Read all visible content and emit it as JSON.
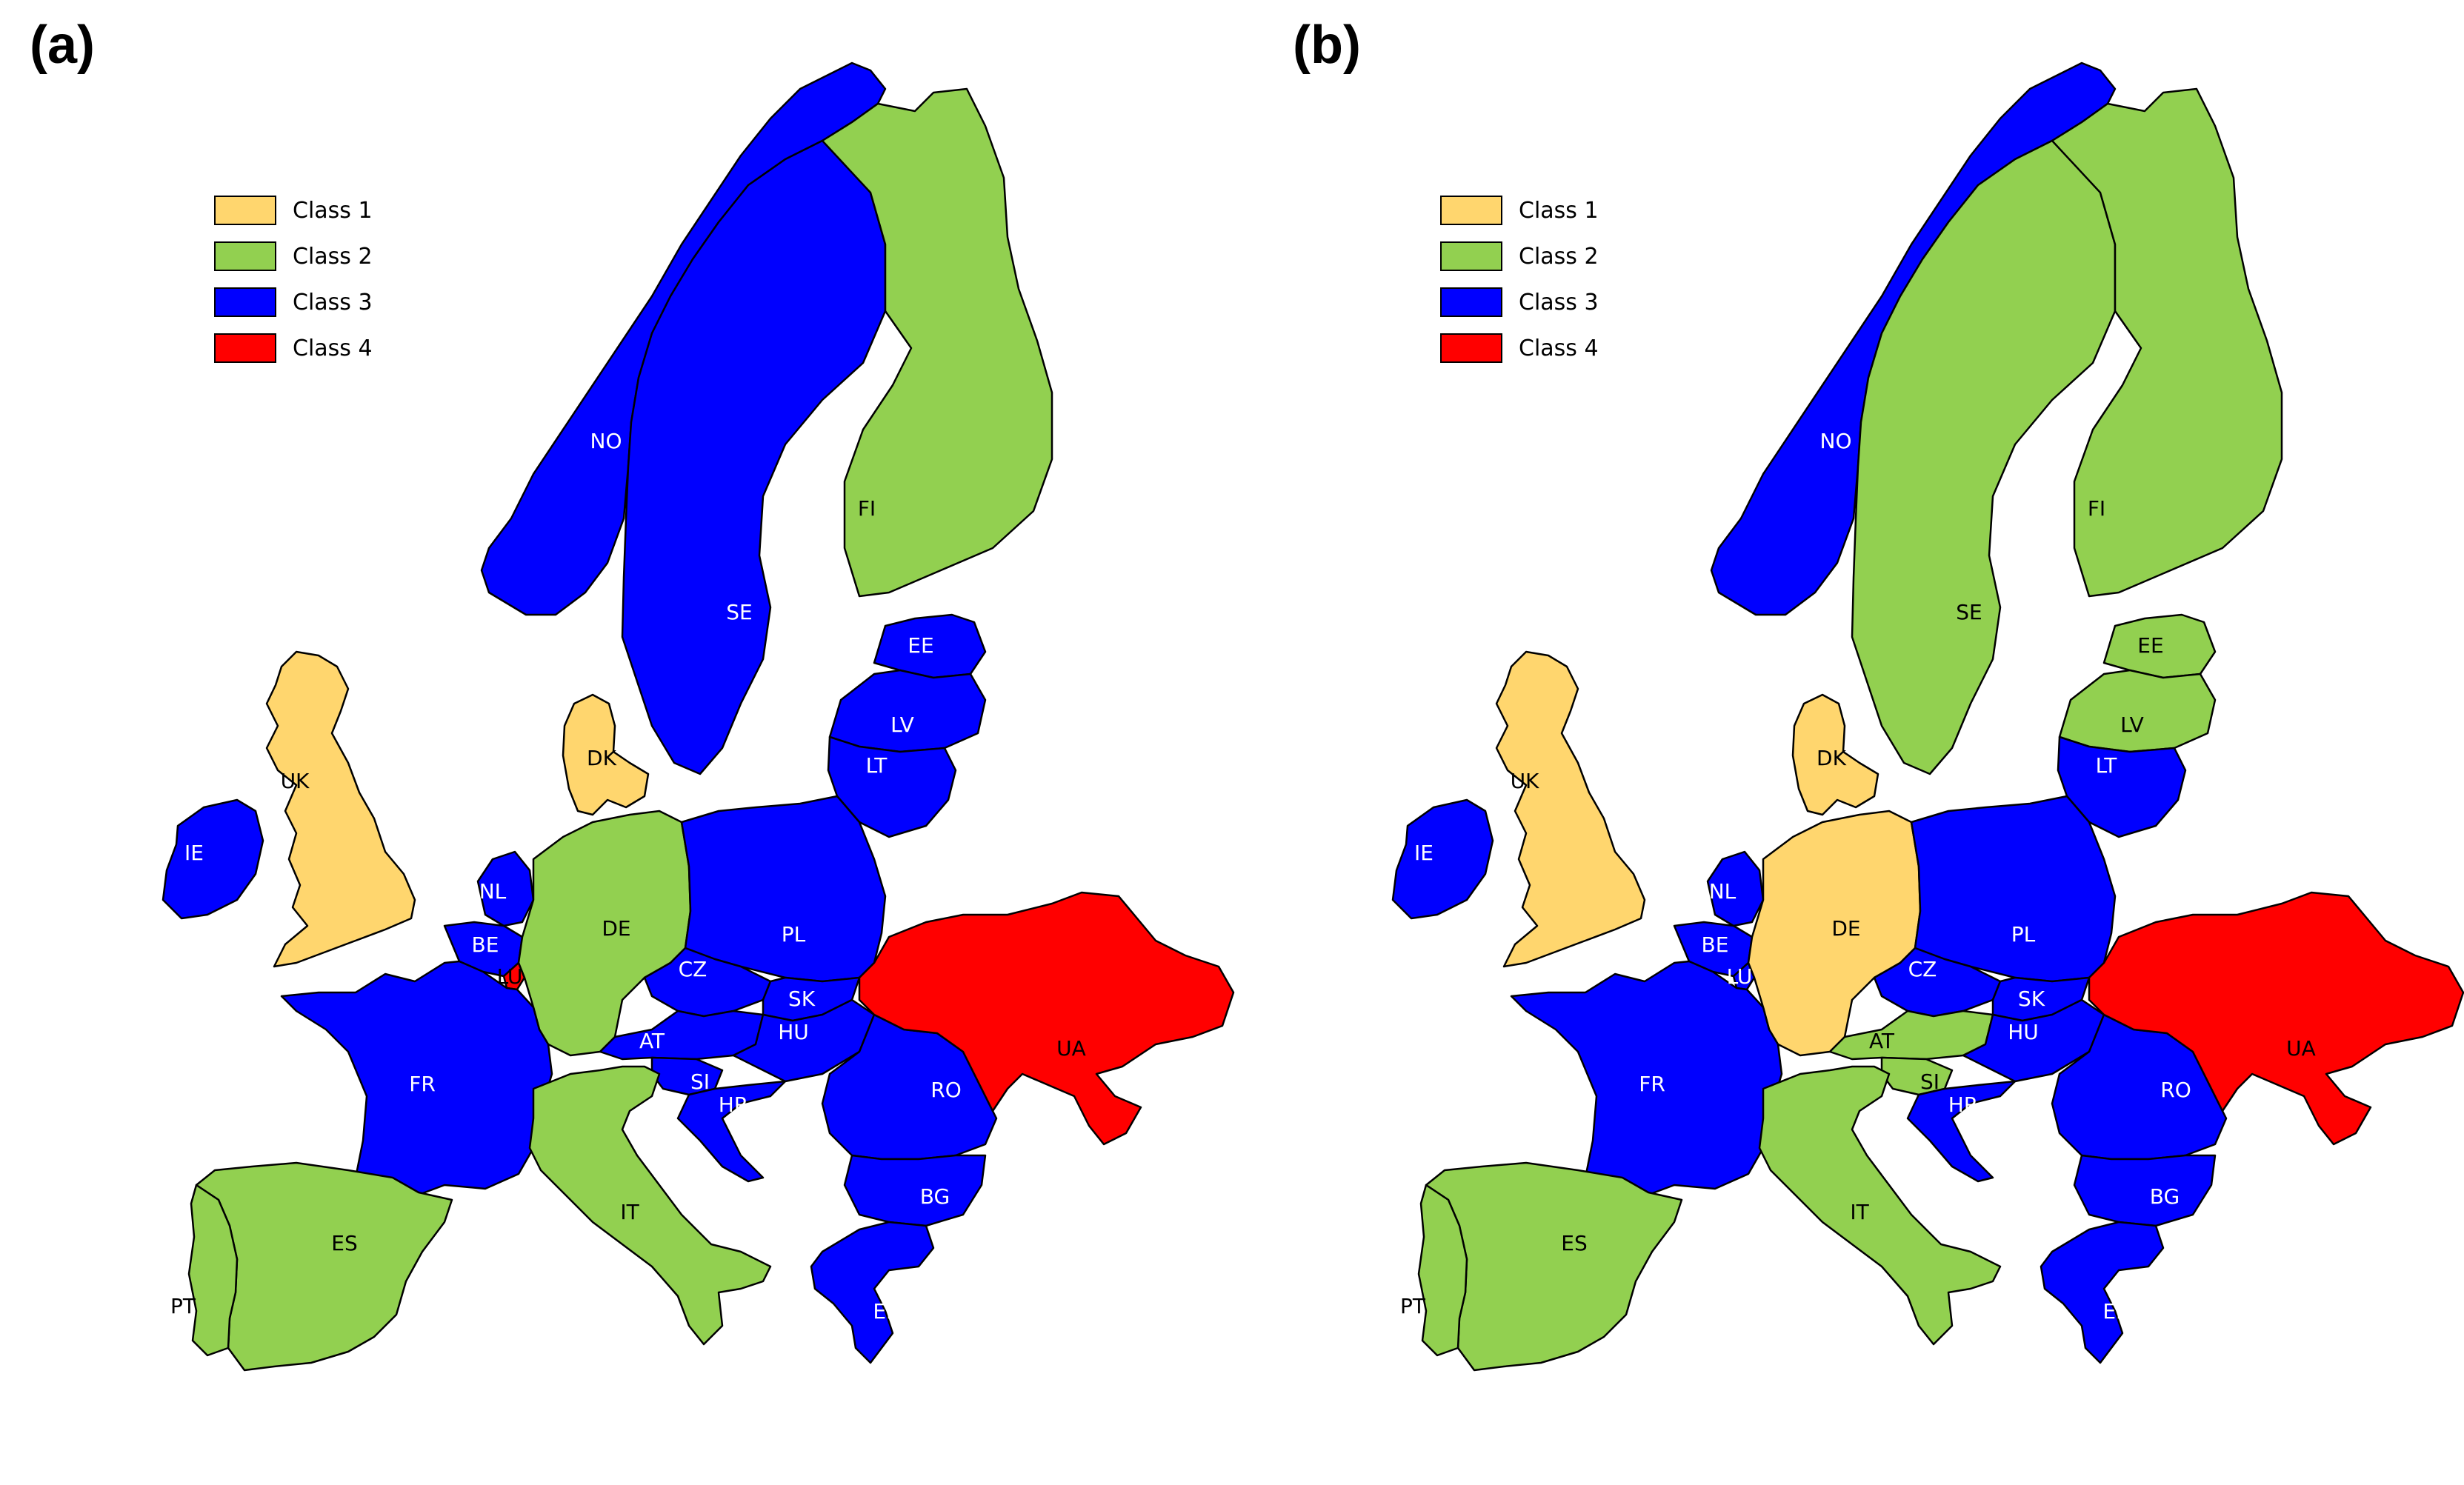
{
  "colors": {
    "class_1": "#FFD66E",
    "class_2": "#92D050",
    "class_3": "#0000FF",
    "class_4": "#FF0000",
    "border": "#000000"
  },
  "legend": [
    {
      "key": "class_1",
      "label": "Class 1"
    },
    {
      "key": "class_2",
      "label": "Class 2"
    },
    {
      "key": "class_3",
      "label": "Class 3"
    },
    {
      "key": "class_4",
      "label": "Class 4"
    }
  ],
  "countries": [
    {
      "id": "NO",
      "label": "NO",
      "name": "Norway"
    },
    {
      "id": "SE",
      "label": "SE",
      "name": "Sweden"
    },
    {
      "id": "FI",
      "label": "FI",
      "name": "Finland"
    },
    {
      "id": "EE",
      "label": "EE",
      "name": "Estonia"
    },
    {
      "id": "LV",
      "label": "LV",
      "name": "Latvia"
    },
    {
      "id": "LT",
      "label": "LT",
      "name": "Lithuania"
    },
    {
      "id": "DK",
      "label": "DK",
      "name": "Denmark"
    },
    {
      "id": "UK",
      "label": "UK",
      "name": "United Kingdom"
    },
    {
      "id": "IE",
      "label": "IE",
      "name": "Ireland"
    },
    {
      "id": "NL",
      "label": "NL",
      "name": "Netherlands"
    },
    {
      "id": "BE",
      "label": "BE",
      "name": "Belgium"
    },
    {
      "id": "LU",
      "label": "LU",
      "name": "Luxembourg"
    },
    {
      "id": "DE",
      "label": "DE",
      "name": "Germany"
    },
    {
      "id": "PL",
      "label": "PL",
      "name": "Poland"
    },
    {
      "id": "CZ",
      "label": "CZ",
      "name": "Czechia"
    },
    {
      "id": "SK",
      "label": "SK",
      "name": "Slovakia"
    },
    {
      "id": "AT",
      "label": "AT",
      "name": "Austria"
    },
    {
      "id": "HU",
      "label": "HU",
      "name": "Hungary"
    },
    {
      "id": "SI",
      "label": "SI",
      "name": "Slovenia"
    },
    {
      "id": "HR",
      "label": "HR",
      "name": "Croatia"
    },
    {
      "id": "FR",
      "label": "FR",
      "name": "France"
    },
    {
      "id": "ES",
      "label": "ES",
      "name": "Spain"
    },
    {
      "id": "PT",
      "label": "PT",
      "name": "Portugal"
    },
    {
      "id": "IT",
      "label": "IT",
      "name": "Italy"
    },
    {
      "id": "RO",
      "label": "RO",
      "name": "Romania"
    },
    {
      "id": "BG",
      "label": "BG",
      "name": "Bulgaria"
    },
    {
      "id": "EL",
      "label": "EL",
      "name": "Greece"
    },
    {
      "id": "UA",
      "label": "UA",
      "name": "Ukraine"
    }
  ],
  "panels": [
    {
      "label": "(a)",
      "classes": {
        "NO": 3,
        "SE": 3,
        "FI": 2,
        "EE": 3,
        "LV": 3,
        "LT": 3,
        "DK": 1,
        "UK": 1,
        "IE": 3,
        "NL": 3,
        "BE": 3,
        "LU": 4,
        "DE": 2,
        "PL": 3,
        "CZ": 3,
        "SK": 3,
        "AT": 3,
        "HU": 3,
        "SI": 3,
        "HR": 3,
        "FR": 3,
        "ES": 2,
        "PT": 2,
        "IT": 2,
        "RO": 3,
        "BG": 3,
        "EL": 3,
        "UA": 4
      }
    },
    {
      "label": "(b)",
      "classes": {
        "NO": 3,
        "SE": 2,
        "FI": 2,
        "EE": 2,
        "LV": 2,
        "LT": 3,
        "DK": 1,
        "UK": 1,
        "IE": 3,
        "NL": 3,
        "BE": 3,
        "LU": 3,
        "DE": 1,
        "PL": 3,
        "CZ": 3,
        "SK": 3,
        "AT": 2,
        "HU": 3,
        "SI": 2,
        "HR": 3,
        "FR": 3,
        "ES": 2,
        "PT": 2,
        "IT": 2,
        "RO": 3,
        "BG": 3,
        "EL": 3,
        "UA": 4
      }
    }
  ]
}
